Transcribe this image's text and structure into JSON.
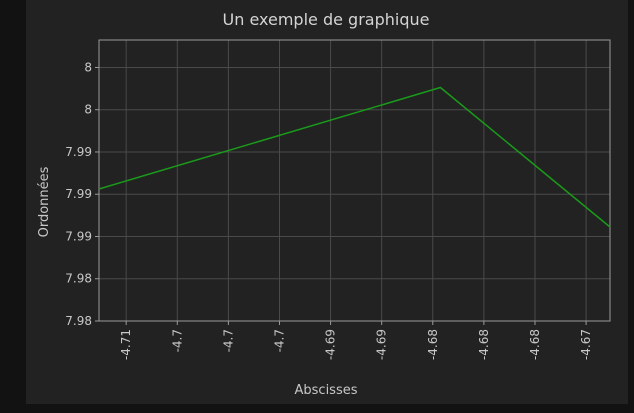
{
  "chart_data": {
    "type": "line",
    "title": "Un exemple de graphique",
    "xlabel": "Abscisses",
    "ylabel": "Ordonnées",
    "x_ticks": [
      {
        "value": -4.7095,
        "label": "-4.71"
      },
      {
        "value": -4.7048,
        "label": "-4.7"
      },
      {
        "value": -4.7001,
        "label": "-4.7"
      },
      {
        "value": -4.6954,
        "label": "-4.7"
      },
      {
        "value": -4.6907,
        "label": "-4.69"
      },
      {
        "value": -4.686,
        "label": "-4.69"
      },
      {
        "value": -4.6813,
        "label": "-4.68"
      },
      {
        "value": -4.6766,
        "label": "-4.68"
      },
      {
        "value": -4.6719,
        "label": "-4.68"
      },
      {
        "value": -4.6672,
        "label": "-4.67"
      }
    ],
    "y_ticks": [
      {
        "value": 7.98,
        "label": "7.98"
      },
      {
        "value": 7.984,
        "label": "7.98"
      },
      {
        "value": 7.988,
        "label": "7.99"
      },
      {
        "value": 7.992,
        "label": "7.99"
      },
      {
        "value": 7.996,
        "label": "7.99"
      },
      {
        "value": 8.0,
        "label": "8"
      },
      {
        "value": 8.004,
        "label": "8"
      }
    ],
    "xlim": [
      -4.712,
      -4.665
    ],
    "ylim": [
      7.98,
      8.0066
    ],
    "grid": true,
    "series": [
      {
        "color": "#1a9a1a",
        "x": [
          -4.712,
          -4.6806,
          -4.665
        ],
        "y": [
          7.9925,
          8.0021,
          7.9889
        ]
      }
    ]
  },
  "colors": {
    "background": "#121212",
    "panel": "#222222",
    "plot_area": "#222222",
    "grid": "#4a4a4a",
    "axis": "#9a9a9a"
  }
}
